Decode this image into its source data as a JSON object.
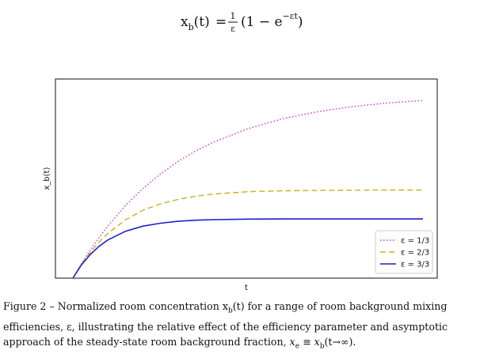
{
  "equation": {
    "lhs_var": "x",
    "lhs_sub": "b",
    "lhs_arg": "(t)",
    "equals": "=",
    "frac_num": "1",
    "frac_den": "ε",
    "paren_open": "(1 − e",
    "exponent": "−εt",
    "paren_close": ")"
  },
  "chart_data": {
    "type": "line",
    "xlabel": "t",
    "ylabel": "x_b(t)",
    "xlim": [
      0,
      10
    ],
    "ylim": [
      0,
      1.08
    ],
    "grid": false,
    "legend_position": "lower-right",
    "x": [
      0,
      0.25,
      0.5,
      0.75,
      1,
      1.5,
      2,
      2.5,
      3,
      3.5,
      4,
      5,
      6,
      7,
      8,
      9,
      10
    ],
    "series": [
      {
        "name": "ε = 1/3",
        "color": "#cc33cc",
        "style": "dotted",
        "values": [
          0.0,
          0.08,
          0.153,
          0.221,
          0.283,
          0.393,
          0.486,
          0.565,
          0.632,
          0.689,
          0.736,
          0.811,
          0.865,
          0.903,
          0.931,
          0.95,
          0.964
        ]
      },
      {
        "name": "ε = 2/3",
        "color": "#c8b21f",
        "style": "dashed",
        "values": [
          0.0,
          0.077,
          0.141,
          0.196,
          0.243,
          0.316,
          0.368,
          0.403,
          0.427,
          0.444,
          0.456,
          0.469,
          0.474,
          0.476,
          0.477,
          0.478,
          0.478
        ]
      },
      {
        "name": "ε = 3/3",
        "color": "#1f1fcc",
        "style": "solid",
        "values": [
          0.0,
          0.073,
          0.129,
          0.173,
          0.207,
          0.254,
          0.282,
          0.298,
          0.308,
          0.314,
          0.317,
          0.32,
          0.321,
          0.321,
          0.321,
          0.321,
          0.321
        ]
      }
    ]
  },
  "caption": {
    "part1": "Figure 2 – Normalized room concentration x",
    "part1_sub": "b",
    "part2": "(t) for a range of room background mixing efficiencies, ε, illustrating the relative effect of the efficiency parameter and asymptotic approach of the steady-state room background fraction, ",
    "xe_var": "x",
    "xe_sub": "e",
    "equiv": " ≡ ",
    "xb_var": "x",
    "xb_sub": "b",
    "end": "(t→∞)."
  }
}
